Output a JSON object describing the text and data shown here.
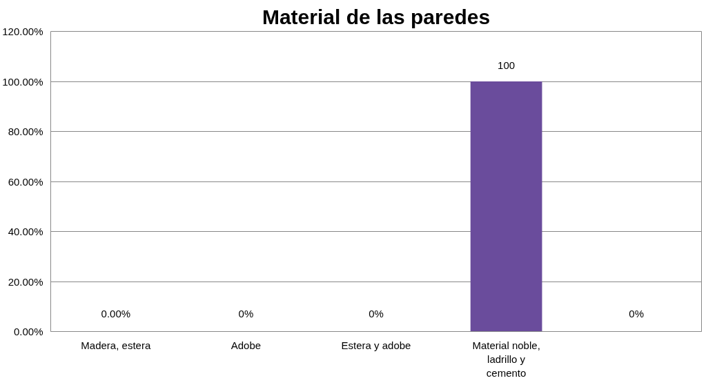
{
  "chart_data": {
    "type": "bar",
    "title": "Material de las paredes",
    "categories": [
      "Madera, estera",
      "Adobe",
      "Estera y adobe",
      "Material noble,\nladrillo y\ncemento",
      null
    ],
    "values": [
      0,
      0,
      0,
      100,
      0
    ],
    "value_labels": [
      "0.00%",
      "0%",
      "0%",
      "100",
      "0%"
    ],
    "color": "#6a4c9c",
    "ylim": [
      0,
      120
    ],
    "yticks": [
      {
        "value": 0,
        "label": "0.00%"
      },
      {
        "value": 20,
        "label": "20.00%"
      },
      {
        "value": 40,
        "label": "40.00%"
      },
      {
        "value": 60,
        "label": "60.00%"
      },
      {
        "value": 80,
        "label": "80.00%"
      },
      {
        "value": 100,
        "label": "100.00%"
      },
      {
        "value": 120,
        "label": "120.00%"
      }
    ],
    "grid": "y"
  }
}
